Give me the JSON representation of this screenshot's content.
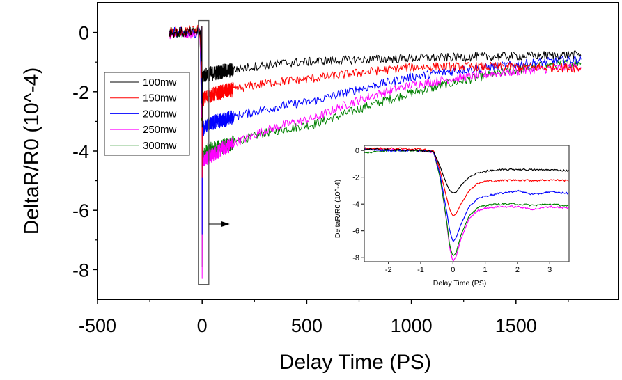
{
  "chart_data": [
    {
      "type": "line",
      "name": "main",
      "title": "",
      "xlabel": "Delay Time (PS)",
      "ylabel": "DeltaR/R0 (10^-4)",
      "xlim": [
        -500,
        1990
      ],
      "ylim": [
        -9,
        1
      ],
      "xticks": [
        -500,
        0,
        500,
        1000,
        1500
      ],
      "xtick_labels": [
        "-500",
        "0",
        "500",
        "1000",
        "1500"
      ],
      "xminor": [
        -250,
        250,
        750,
        1250,
        1750
      ],
      "yticks": [
        0,
        -2,
        -4,
        -6,
        -8
      ],
      "ytick_labels": [
        "0",
        "-2",
        "-4",
        "-6",
        "-8"
      ],
      "yminor": [
        -1,
        -3,
        -5,
        -7
      ],
      "grid": false,
      "legend_position": "upper-left",
      "zoom_box": {
        "x_range": [
          -18,
          32
        ],
        "y_range": [
          -8.5,
          0.4
        ]
      },
      "x": [
        -156,
        -100,
        -50,
        -10,
        0,
        5,
        33,
        100,
        200,
        300,
        400,
        533,
        700,
        850,
        1000,
        1200,
        1400,
        1600,
        1813
      ],
      "series": [
        {
          "name": "100mw",
          "color": "#000000",
          "values": [
            0,
            0,
            0,
            0.05,
            -1.5,
            -1.45,
            -1.4,
            -1.32,
            -1.2,
            -1.1,
            -1.03,
            -0.98,
            -0.93,
            -0.9,
            -0.87,
            -0.84,
            -0.81,
            -0.78,
            -0.75
          ]
        },
        {
          "name": "150mw",
          "color": "#ff0000",
          "values": [
            0,
            0.05,
            0.05,
            0.1,
            -2.3,
            -2.25,
            -2.13,
            -2.0,
            -1.85,
            -1.72,
            -1.63,
            -1.55,
            -1.4,
            -1.28,
            -1.17,
            -1.15,
            -1.15,
            -1.18,
            -1.2
          ]
        },
        {
          "name": "200mw",
          "color": "#0000ff",
          "values": [
            0,
            0,
            -0.05,
            0.05,
            -3.3,
            -3.25,
            -3.07,
            -2.95,
            -2.75,
            -2.6,
            -2.45,
            -2.32,
            -2.0,
            -1.75,
            -1.5,
            -1.3,
            -1.15,
            -1.02,
            -0.9
          ]
        },
        {
          "name": "250mw",
          "color": "#ff00ff",
          "values": [
            -0.05,
            0,
            -0.05,
            0.1,
            -4.3,
            -4.25,
            -4.2,
            -3.9,
            -3.6,
            -3.3,
            -3.1,
            -2.9,
            -2.4,
            -2.05,
            -1.78,
            -1.55,
            -1.38,
            -1.25,
            -1.15
          ]
        },
        {
          "name": "300mw",
          "color": "#008000",
          "values": [
            0,
            -0.05,
            0,
            0,
            -4.2,
            -4.1,
            -3.96,
            -3.85,
            -3.6,
            -3.4,
            -3.25,
            -3.1,
            -2.7,
            -2.35,
            -2.04,
            -1.7,
            -1.4,
            -1.15,
            -1.0
          ]
        }
      ]
    },
    {
      "type": "line",
      "name": "inset",
      "title": "",
      "xlabel": "Delay Time (PS)",
      "ylabel": "DeltaR/R0 (10^-4)",
      "xlim": [
        -2.75,
        3.6
      ],
      "ylim": [
        -8.3,
        0.37
      ],
      "xticks": [
        -2,
        -1,
        0,
        1,
        2,
        3
      ],
      "xtick_labels": [
        "-2",
        "-1",
        "0",
        "1",
        "2",
        "3"
      ],
      "yticks": [
        0,
        -2,
        -4,
        -6,
        -8
      ],
      "ytick_labels": [
        "0",
        "-2",
        "-4",
        "-6",
        "-8"
      ],
      "grid": false,
      "x": [
        -2.75,
        -2.0,
        -1.0,
        -0.6,
        -0.4,
        -0.2,
        -0.1,
        0.0,
        0.1,
        0.25,
        0.5,
        0.75,
        1.0,
        1.5,
        2.0,
        2.5,
        3.0,
        3.6
      ],
      "series": [
        {
          "name": "100mw",
          "color": "#000000",
          "values": [
            0.1,
            0.05,
            0.0,
            -0.1,
            -1.2,
            -2.5,
            -3.0,
            -3.2,
            -3.1,
            -2.6,
            -2.0,
            -1.7,
            -1.55,
            -1.45,
            -1.4,
            -1.45,
            -1.45,
            -1.5
          ]
        },
        {
          "name": "150mw",
          "color": "#ff0000",
          "values": [
            0.15,
            0.15,
            0.1,
            0.0,
            -1.5,
            -3.5,
            -4.4,
            -4.9,
            -4.7,
            -4.0,
            -3.0,
            -2.5,
            -2.3,
            -2.25,
            -2.2,
            -2.25,
            -2.2,
            -2.25
          ]
        },
        {
          "name": "200mw",
          "color": "#0000ff",
          "values": [
            0.1,
            0.0,
            0.0,
            -0.1,
            -1.8,
            -4.5,
            -6.0,
            -6.8,
            -6.5,
            -5.5,
            -4.2,
            -3.6,
            -3.4,
            -3.2,
            -3.0,
            -3.3,
            -3.1,
            -3.2
          ]
        },
        {
          "name": "250mw",
          "color": "#ff00ff",
          "values": [
            0.1,
            0.05,
            0.0,
            -0.15,
            -2.0,
            -5.3,
            -7.3,
            -8.3,
            -7.9,
            -6.6,
            -5.1,
            -4.5,
            -4.3,
            -4.2,
            -4.2,
            -4.4,
            -4.2,
            -4.3
          ]
        },
        {
          "name": "300mw",
          "color": "#008000",
          "values": [
            -0.2,
            0.0,
            0.0,
            -0.1,
            -2.0,
            -5.2,
            -7.1,
            -7.9,
            -7.6,
            -6.3,
            -4.9,
            -4.3,
            -4.1,
            -4.0,
            -4.0,
            -4.1,
            -4.0,
            -4.15
          ]
        }
      ]
    }
  ]
}
